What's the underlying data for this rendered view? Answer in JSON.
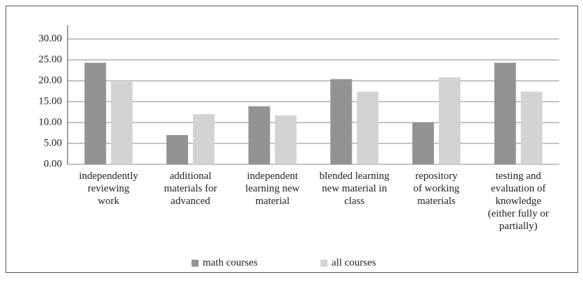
{
  "chart_data": {
    "type": "bar",
    "categories": [
      "independently\nreviewing\nwork",
      "additional\nmaterials for\nadvanced",
      "independent\nlearning new\nmaterial",
      "blended learning\nnew material in\nclass",
      "repository\nof working\nmaterials",
      "testing and\nevaluation of\nknowledge\n(either fully or\npartially)"
    ],
    "series": [
      {
        "name": "math courses",
        "color": "#939393",
        "values": [
          24.3,
          7.0,
          13.9,
          20.4,
          10.0,
          24.3
        ]
      },
      {
        "name": "all courses",
        "color": "#d3d3d3",
        "values": [
          20.0,
          12.0,
          11.7,
          17.4,
          20.8,
          17.4
        ]
      }
    ],
    "ylim": [
      0,
      30
    ],
    "yticks": [
      {
        "value": 0,
        "label": "0.00"
      },
      {
        "value": 5,
        "label": "5.00"
      },
      {
        "value": 10,
        "label": "10.00"
      },
      {
        "value": 15,
        "label": "15.00"
      },
      {
        "value": 20,
        "label": "20.00"
      },
      {
        "value": 25,
        "label": "25.00"
      },
      {
        "value": 30,
        "label": "30.00"
      }
    ],
    "grid": true,
    "legend": "bottom"
  }
}
